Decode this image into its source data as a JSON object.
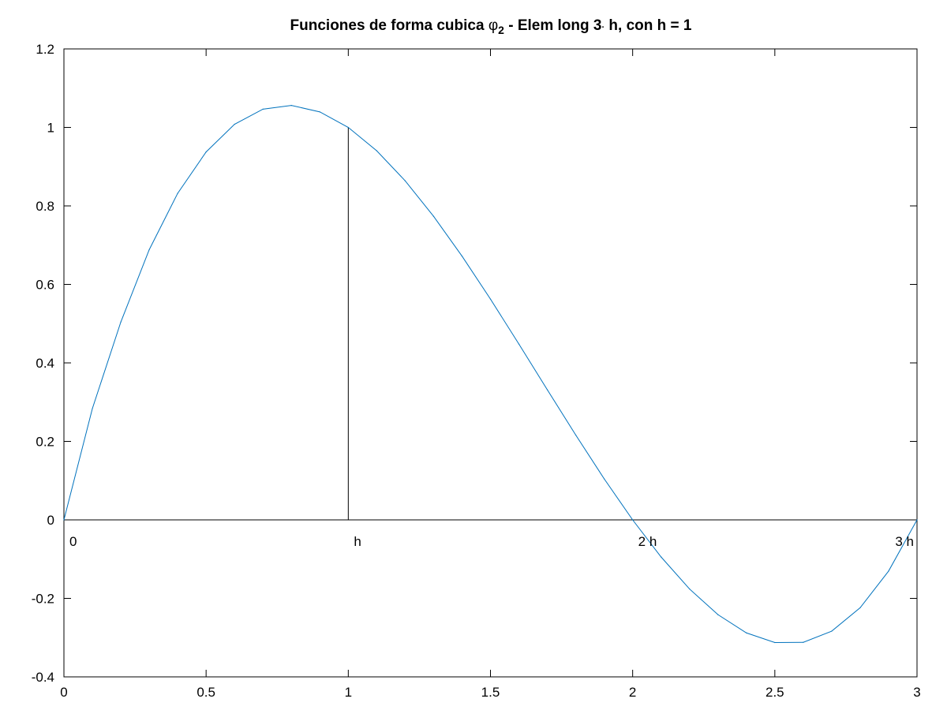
{
  "chart_data": {
    "type": "line",
    "title": {
      "prefix": "Funciones de forma cubica ",
      "symbol": "φ",
      "subscript": "2",
      "suffix_a": " - Elem long 3",
      "dot": "·",
      "suffix_b": " h, con h = 1"
    },
    "xlabel": "",
    "ylabel": "",
    "xlim": [
      0,
      3
    ],
    "ylim": [
      -0.4,
      1.2
    ],
    "xticks": [
      0,
      0.5,
      1,
      1.5,
      2,
      2.5,
      3
    ],
    "xtick_labels": [
      "0",
      "0.5",
      "1",
      "1.5",
      "2",
      "2.5",
      "3"
    ],
    "yticks": [
      -0.4,
      -0.2,
      0,
      0.2,
      0.4,
      0.6,
      0.8,
      1,
      1.2
    ],
    "ytick_labels": [
      "-0.4",
      "-0.2",
      "0",
      "0.2",
      "0.4",
      "0.6",
      "0.8",
      "1",
      "1.2"
    ],
    "grid": false,
    "series": [
      {
        "color": "#0072bd",
        "x": [
          0,
          0.1,
          0.2,
          0.3,
          0.4,
          0.5,
          0.6,
          0.7,
          0.8,
          0.9,
          1.0,
          1.1,
          1.2,
          1.3,
          1.4,
          1.5,
          1.6,
          1.7,
          1.8,
          1.9,
          2.0,
          2.1,
          2.2,
          2.3,
          2.4,
          2.5,
          2.6,
          2.7,
          2.8,
          2.9,
          3.0
        ],
        "y": [
          0,
          0.2835,
          0.504,
          0.6885,
          0.832,
          0.9375,
          1.008,
          1.0465,
          1.056,
          1.0395,
          1.0,
          0.9405,
          0.864,
          0.7735,
          0.672,
          0.5625,
          0.448,
          0.3315,
          0.216,
          0.1045,
          0,
          -0.0945,
          -0.176,
          -0.2415,
          -0.288,
          -0.3125,
          -0.312,
          -0.2835,
          -0.224,
          -0.1305,
          0
        ]
      }
    ],
    "reference_lines": [
      {
        "type": "horizontal",
        "y": 0,
        "color": "#000000"
      },
      {
        "type": "vertical",
        "x": 1,
        "y_from": 0,
        "y_to": 1,
        "color": "#000000"
      }
    ],
    "annotations": [
      {
        "text": "0",
        "x": 0
      },
      {
        "text": "h",
        "x": 1
      },
      {
        "text": "2 h",
        "x": 2
      },
      {
        "text": "3 h",
        "x": 3
      }
    ]
  }
}
